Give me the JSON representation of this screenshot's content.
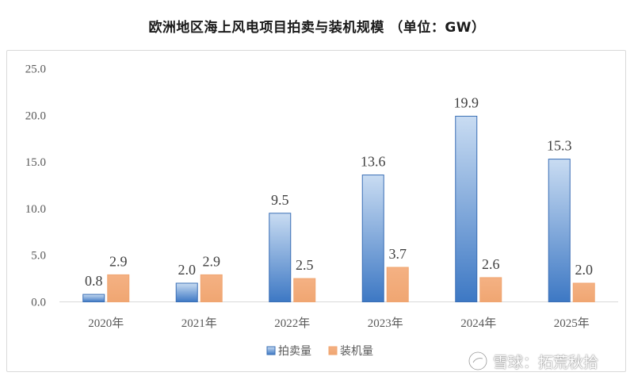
{
  "chart_data": {
    "type": "bar",
    "title": "欧洲地区海上风电项目拍卖与装机规模 （单位：GW）",
    "categories": [
      "2020年",
      "2021年",
      "2022年",
      "2023年",
      "2024年",
      "2025年"
    ],
    "series": [
      {
        "name": "拍卖量",
        "values": [
          0.8,
          2.0,
          9.5,
          13.6,
          19.9,
          15.3
        ],
        "color_top": "#c9dcf2",
        "color_bottom": "#3d78c4",
        "border": "#3a6fb5"
      },
      {
        "name": "装机量",
        "values": [
          2.9,
          2.9,
          2.5,
          3.7,
          2.6,
          2.0
        ],
        "color_top": "#f4b183",
        "color_bottom": "#f0a672",
        "border": "#f0a672"
      }
    ],
    "y_ticks": [
      "0.0",
      "5.0",
      "10.0",
      "15.0",
      "20.0",
      "25.0"
    ],
    "ylim": [
      0,
      25
    ],
    "grid": false,
    "legend_position": "bottom-center"
  },
  "watermark": {
    "icon": "snowball-logo-icon",
    "text": "雪球：拓荒秋拾"
  }
}
